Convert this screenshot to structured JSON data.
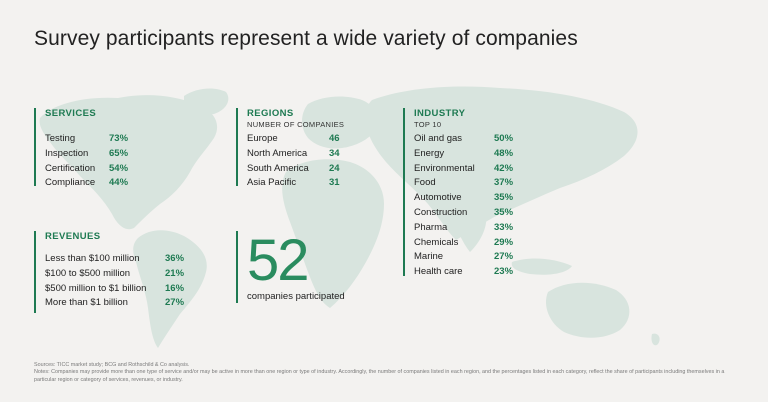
{
  "title": "Survey participants represent a wide variety of companies",
  "colors": {
    "accent": "#1e7a52",
    "map": "#d8e4de",
    "background": "#f3f2f0"
  },
  "services": {
    "heading": "SERVICES",
    "items": [
      {
        "label": "Testing",
        "value": "73%"
      },
      {
        "label": "Inspection",
        "value": "65%"
      },
      {
        "label": "Certification",
        "value": "54%"
      },
      {
        "label": "Compliance",
        "value": "44%"
      }
    ]
  },
  "regions": {
    "heading": "REGIONS",
    "subheading": "NUMBER OF COMPANIES",
    "items": [
      {
        "label": "Europe",
        "value": "46"
      },
      {
        "label": "North America",
        "value": "34"
      },
      {
        "label": "South America",
        "value": "24"
      },
      {
        "label": "Asia Pacific",
        "value": "31"
      }
    ]
  },
  "industry": {
    "heading": "INDUSTRY",
    "subheading": "TOP 10",
    "items": [
      {
        "label": "Oil and gas",
        "value": "50%"
      },
      {
        "label": "Energy",
        "value": "48%"
      },
      {
        "label": "Environmental",
        "value": "42%"
      },
      {
        "label": "Food",
        "value": "37%"
      },
      {
        "label": "Automotive",
        "value": "35%"
      },
      {
        "label": "Construction",
        "value": "35%"
      },
      {
        "label": "Pharma",
        "value": "33%"
      },
      {
        "label": "Chemicals",
        "value": "29%"
      },
      {
        "label": "Marine",
        "value": "27%"
      },
      {
        "label": "Health care",
        "value": "23%"
      }
    ]
  },
  "revenues": {
    "heading": "REVENUES",
    "items": [
      {
        "label": "Less than $100 million",
        "value": "36%"
      },
      {
        "label": "$100 to $500 million",
        "value": "21%"
      },
      {
        "label": "$500 million to $1 billion",
        "value": "16%"
      },
      {
        "label": "More than $1 billion",
        "value": "27%"
      }
    ]
  },
  "total": {
    "number": "52",
    "caption": "companies participated"
  },
  "notes": {
    "sources": "Sources: TICC market study; BCG and Rothschild & Co analysis.",
    "notes": "Notes: Companies may provide more than one type of service and/or may be active in more than one region or type of industry. Accordingly, the number of companies listed in each region, and the percentages listed in each category, reflect the share of participants including themselves in a particular region or category of services, revenues, or industry."
  }
}
